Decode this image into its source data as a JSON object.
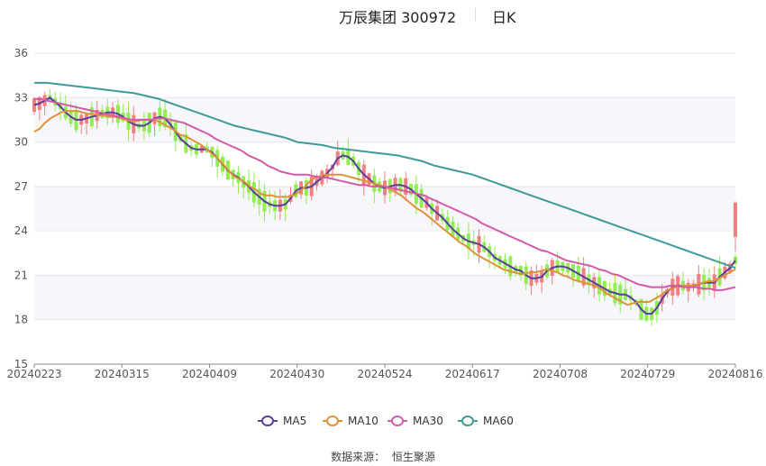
{
  "header": {
    "name": "万辰集团 300972",
    "period": "日K"
  },
  "source": {
    "label": "数据来源：",
    "value": "恒生聚源"
  },
  "colors": {
    "up": "#f08080",
    "down": "#90ee50",
    "ma5": "#5a3e9b",
    "ma10": "#e0923a",
    "ma30": "#d45aa8",
    "ma60": "#3f9a9a",
    "grid": "#e6e6ef",
    "band": "#f6f6fb"
  },
  "chart_data": {
    "type": "candlestick",
    "title": "万辰集团 300972",
    "ylim": [
      15,
      36
    ],
    "yticks": [
      "15",
      "18",
      "21",
      "24",
      "27",
      "30",
      "33",
      "36"
    ],
    "xticks": [
      "20240223",
      "20240315",
      "20240409",
      "20240430",
      "20240524",
      "20240617",
      "20240708",
      "20240729",
      "20240816"
    ],
    "legend": [
      "MA5",
      "MA10",
      "MA30",
      "MA60"
    ],
    "legend_position": "bottom",
    "grid": true,
    "series": [
      {
        "name": "MA5",
        "values": [
          32.5,
          32.6,
          32.8,
          33.0,
          32.7,
          32.4,
          32.0,
          31.7,
          31.5,
          31.5,
          31.6,
          31.7,
          31.8,
          31.9,
          32.0,
          32.0,
          31.9,
          31.7,
          31.4,
          31.2,
          31.1,
          31.1,
          31.3,
          31.6,
          31.7,
          31.6,
          31.2,
          30.7,
          30.2,
          29.9,
          29.6,
          29.5,
          29.5,
          29.5,
          29.3,
          28.9,
          28.5,
          28.1,
          27.8,
          27.6,
          27.3,
          27.0,
          26.6,
          26.3,
          26.0,
          25.8,
          25.7,
          25.7,
          25.8,
          26.2,
          26.7,
          26.9,
          26.9,
          27.0,
          27.3,
          27.6,
          27.9,
          28.3,
          28.9,
          29.1,
          29.0,
          28.7,
          28.2,
          27.8,
          27.5,
          27.2,
          27.0,
          26.9,
          27.0,
          27.1,
          27.1,
          27.0,
          26.8,
          26.5,
          26.2,
          25.9,
          25.5,
          25.2,
          24.9,
          24.5,
          24.1,
          23.8,
          23.5,
          23.3,
          23.2,
          23.1,
          22.9,
          22.6,
          22.2,
          22.0,
          21.8,
          21.6,
          21.4,
          21.3,
          21.0,
          20.8,
          20.8,
          20.9,
          21.3,
          21.5,
          21.6,
          21.6,
          21.5,
          21.3,
          21.1,
          20.9,
          20.7,
          20.5,
          20.3,
          20.1,
          19.9,
          19.8,
          19.7,
          19.7,
          19.5,
          19.2,
          18.7,
          18.4,
          18.4,
          18.8,
          19.4,
          19.9,
          20.2,
          20.3,
          20.3,
          20.2,
          20.3,
          20.4,
          20.5,
          20.5,
          20.5,
          20.9,
          21.2,
          21.5,
          22.0
        ]
      },
      {
        "name": "MA10",
        "values": [
          30.7,
          30.9,
          31.3,
          31.6,
          31.8,
          32.0,
          32.1,
          32.1,
          32.1,
          32.0,
          31.9,
          31.9,
          31.8,
          31.8,
          31.7,
          31.7,
          31.6,
          31.5,
          31.4,
          31.4,
          31.5,
          31.5,
          31.5,
          31.4,
          31.2,
          31.0,
          30.8,
          30.5,
          30.4,
          30.2,
          30.0,
          29.8,
          29.5,
          29.2,
          28.9,
          28.5,
          28.1,
          27.7,
          27.5,
          27.3,
          27.0,
          26.8,
          26.5,
          26.4,
          26.4,
          26.3,
          26.3,
          26.3,
          26.4,
          26.6,
          26.9,
          27.3,
          27.6,
          27.7,
          27.8,
          27.8,
          27.8,
          27.8,
          27.7,
          27.6,
          27.5,
          27.4,
          27.3,
          27.2,
          27.1,
          27.0,
          26.8,
          26.6,
          26.4,
          26.1,
          25.8,
          25.5,
          25.3,
          25.0,
          24.7,
          24.4,
          24.1,
          23.8,
          23.5,
          23.2,
          23.0,
          22.7,
          22.4,
          22.2,
          22.0,
          21.8,
          21.6,
          21.4,
          21.3,
          21.2,
          21.1,
          21.1,
          21.2,
          21.2,
          21.3,
          21.4,
          21.3,
          21.2,
          21.0,
          20.9,
          20.7,
          20.6,
          20.5,
          20.4,
          20.3,
          20.1,
          19.8,
          19.6,
          19.4,
          19.2,
          19.0,
          19.1,
          19.2,
          19.2,
          19.2,
          19.4,
          19.6,
          19.9,
          20.1,
          20.2,
          20.3,
          20.3,
          20.3,
          20.4,
          20.5,
          20.6,
          20.6,
          20.8,
          21.0,
          21.2,
          21.4
        ]
      },
      {
        "name": "MA30",
        "values": [
          32.9,
          32.9,
          32.8,
          32.7,
          32.6,
          32.5,
          32.4,
          32.3,
          32.2,
          32.1,
          32.0,
          31.9,
          31.8,
          31.7,
          31.6,
          31.5,
          31.5,
          31.5,
          31.5,
          31.6,
          31.6,
          31.5,
          31.4,
          31.3,
          31.1,
          30.9,
          30.7,
          30.5,
          30.2,
          30.0,
          29.8,
          29.6,
          29.4,
          29.1,
          28.9,
          28.7,
          28.4,
          28.2,
          28.0,
          27.9,
          27.8,
          27.8,
          27.8,
          27.7,
          27.6,
          27.6,
          27.5,
          27.4,
          27.3,
          27.2,
          27.1,
          27.1,
          27.0,
          27.0,
          27.0,
          26.9,
          26.8,
          26.7,
          26.6,
          26.5,
          26.4,
          26.2,
          26.0,
          25.8,
          25.6,
          25.4,
          25.2,
          25.0,
          24.8,
          24.5,
          24.3,
          24.1,
          23.9,
          23.7,
          23.5,
          23.3,
          23.1,
          22.9,
          22.7,
          22.6,
          22.4,
          22.2,
          22.0,
          21.9,
          21.8,
          21.7,
          21.6,
          21.4,
          21.3,
          21.1,
          21.0,
          20.8,
          20.6,
          20.4,
          20.3,
          20.2,
          20.2,
          20.2,
          20.3,
          20.3,
          20.2,
          20.2,
          20.2,
          20.1,
          20.1,
          20.0,
          20.0,
          20.1,
          20.2
        ]
      },
      {
        "name": "MA60",
        "values": [
          34.0,
          34.0,
          33.9,
          33.8,
          33.7,
          33.6,
          33.5,
          33.4,
          33.3,
          33.1,
          32.9,
          32.6,
          32.3,
          32.0,
          31.7,
          31.4,
          31.1,
          30.9,
          30.7,
          30.5,
          30.3,
          30.0,
          29.9,
          29.8,
          29.6,
          29.5,
          29.4,
          29.3,
          29.2,
          29.1,
          28.9,
          28.7,
          28.4,
          28.2,
          28.0,
          27.8,
          27.5,
          27.2,
          26.9,
          26.6,
          26.3,
          26.0,
          25.7,
          25.4,
          25.1,
          24.8,
          24.5,
          24.2,
          23.9,
          23.6,
          23.3,
          23.0,
          22.7,
          22.4,
          22.1,
          21.8,
          21.5
        ]
      }
    ]
  }
}
